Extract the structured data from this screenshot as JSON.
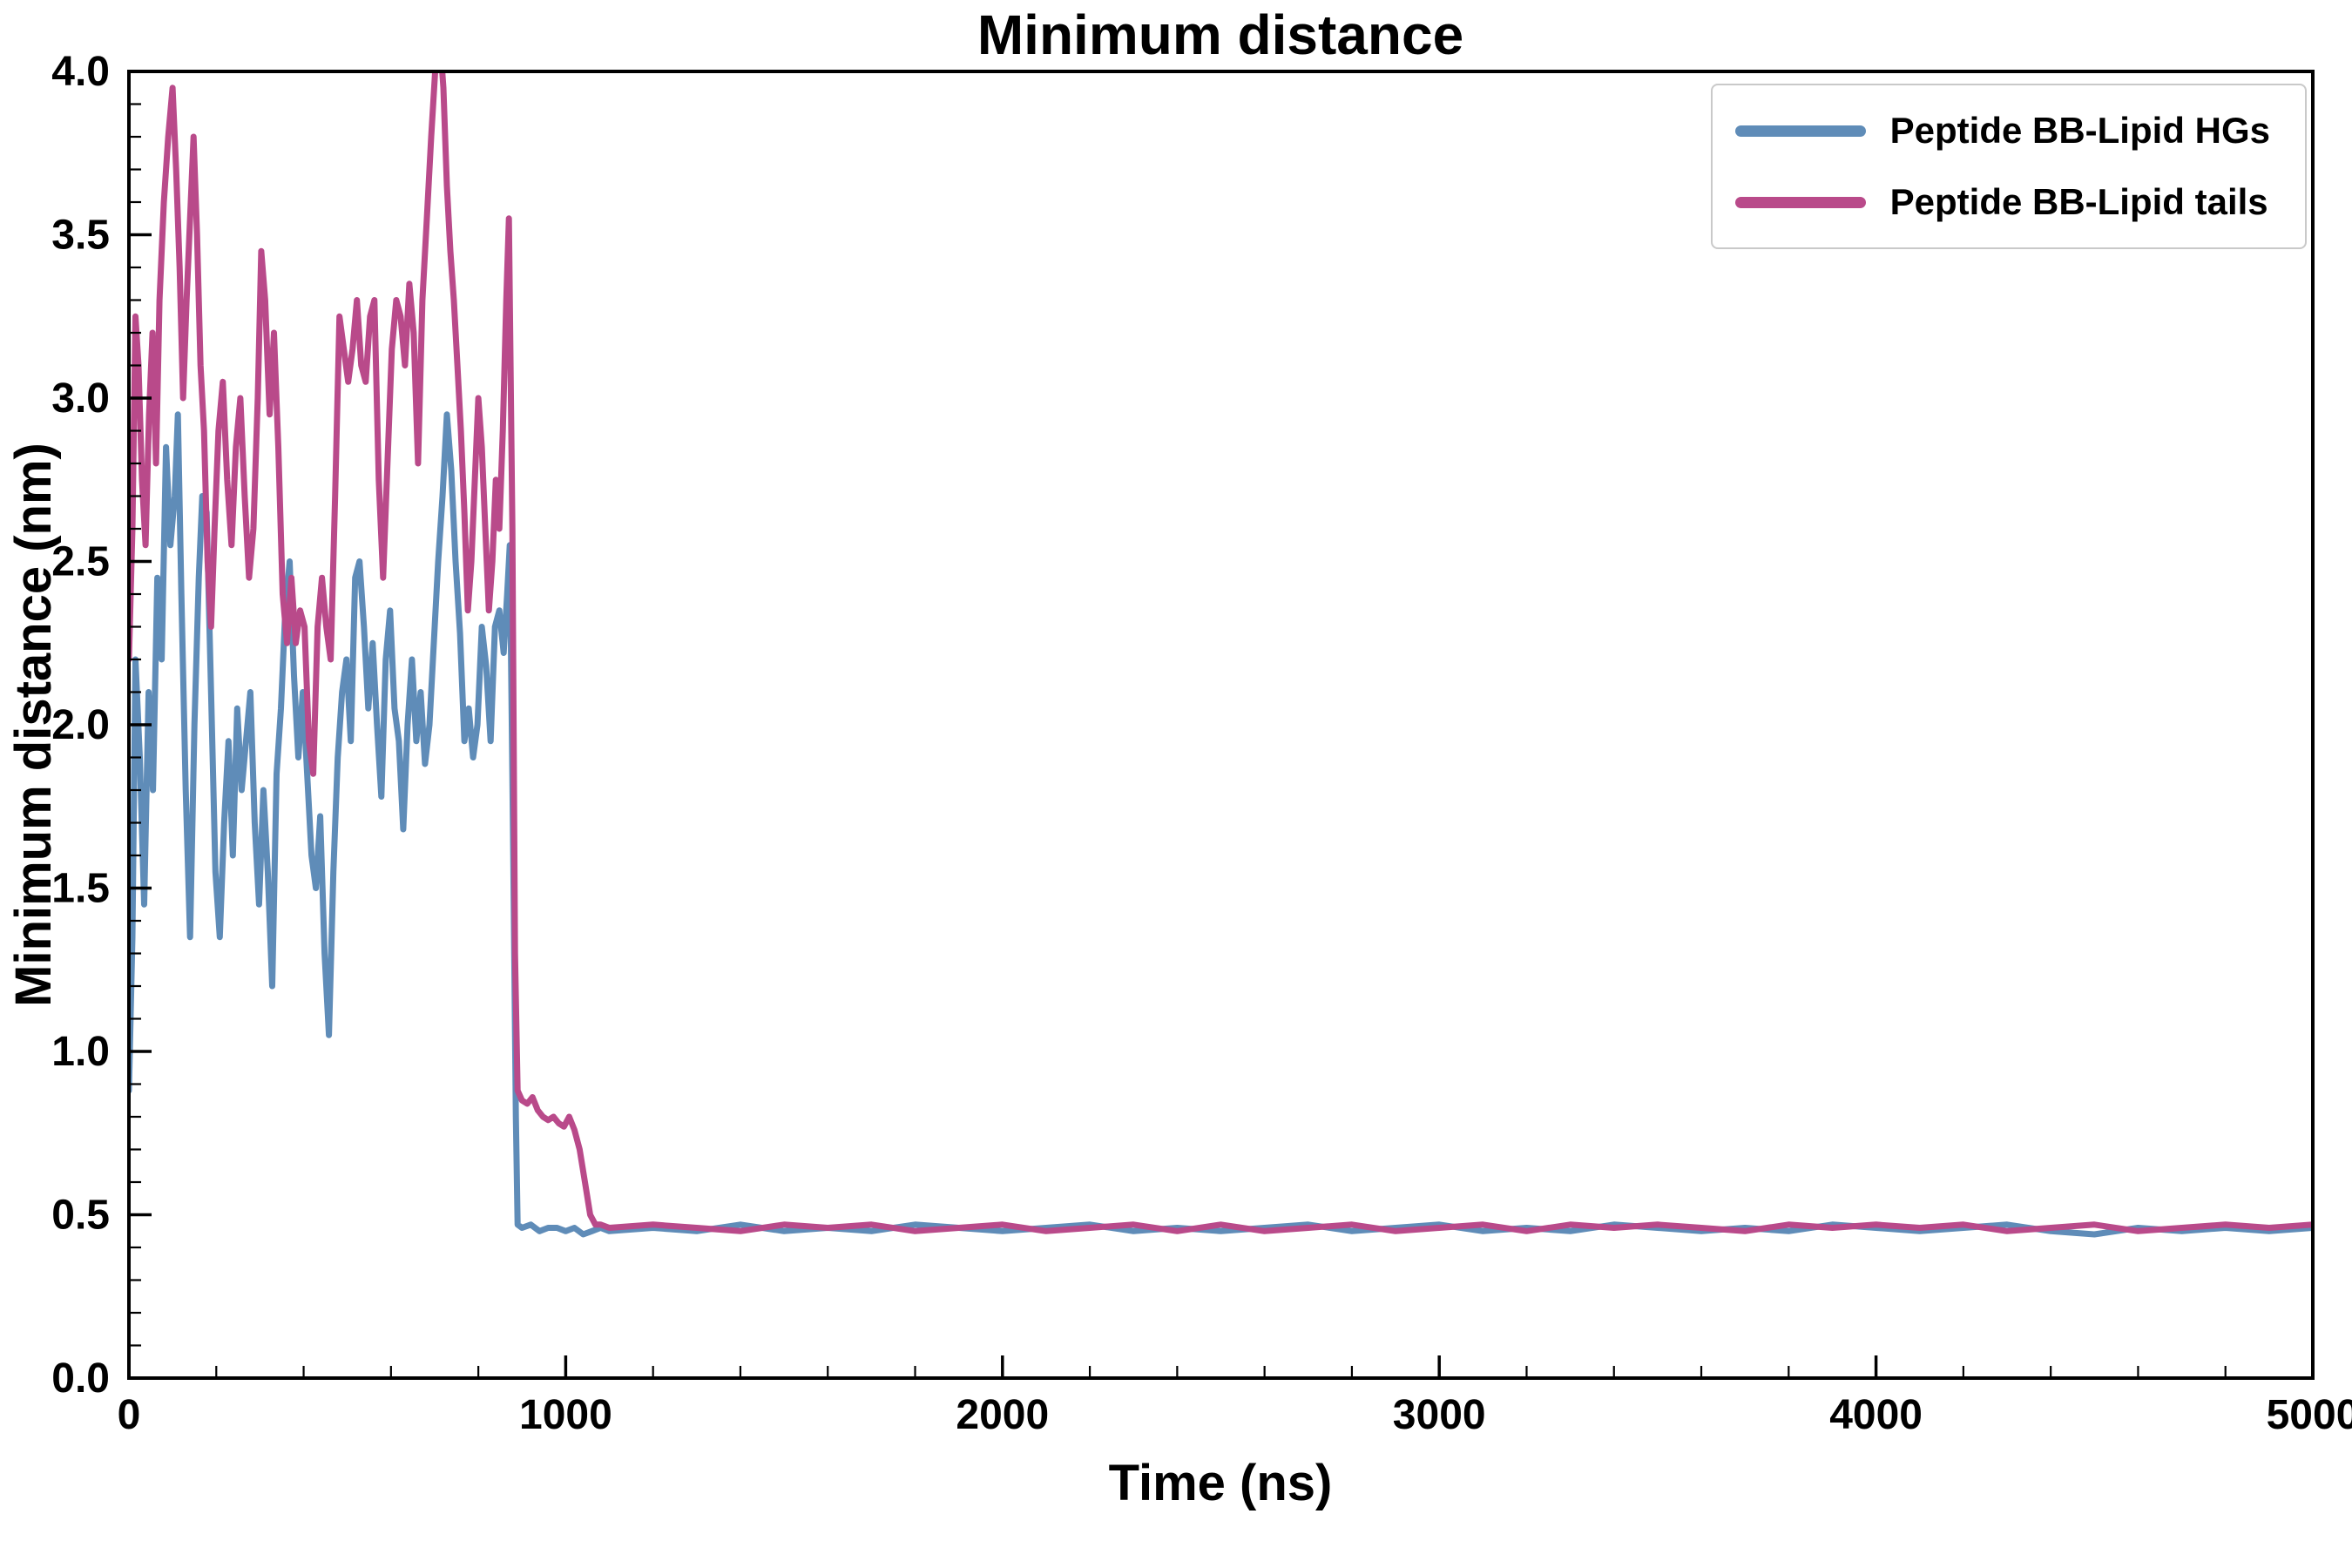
{
  "chart_data": {
    "type": "line",
    "title": "Minimum distance",
    "xlabel": "Time (ns)",
    "ylabel": "Minimum distance (nm)",
    "xlim": [
      0,
      5000
    ],
    "ylim": [
      0.0,
      4.0
    ],
    "xticks": [
      0,
      1000,
      2000,
      3000,
      4000,
      5000
    ],
    "xtick_labels": [
      "0",
      "1000",
      "2000",
      "3000",
      "4000",
      "5000"
    ],
    "yticks": [
      0.0,
      0.5,
      1.0,
      1.5,
      2.0,
      2.5,
      3.0,
      3.5,
      4.0
    ],
    "ytick_labels": [
      "0.0",
      "0.5",
      "1.0",
      "1.5",
      "2.0",
      "2.5",
      "3.0",
      "3.5",
      "4.0"
    ],
    "x_minor_step": 200,
    "y_minor_step": 0.1,
    "grid": false,
    "legend_position": "upper right",
    "series": [
      {
        "name": "Peptide BB-Lipid HGs",
        "color": "#5f8cb8",
        "points": [
          [
            0,
            0.88
          ],
          [
            8,
            1.35
          ],
          [
            15,
            2.2
          ],
          [
            25,
            1.9
          ],
          [
            35,
            1.45
          ],
          [
            45,
            2.1
          ],
          [
            55,
            1.8
          ],
          [
            65,
            2.45
          ],
          [
            75,
            2.2
          ],
          [
            85,
            2.85
          ],
          [
            95,
            2.55
          ],
          [
            105,
            2.7
          ],
          [
            112,
            2.95
          ],
          [
            120,
            2.4
          ],
          [
            130,
            1.8
          ],
          [
            140,
            1.35
          ],
          [
            150,
            2.0
          ],
          [
            160,
            2.45
          ],
          [
            168,
            2.7
          ],
          [
            178,
            2.65
          ],
          [
            188,
            2.1
          ],
          [
            198,
            1.55
          ],
          [
            208,
            1.35
          ],
          [
            218,
            1.7
          ],
          [
            228,
            1.95
          ],
          [
            238,
            1.6
          ],
          [
            248,
            2.05
          ],
          [
            258,
            1.8
          ],
          [
            268,
            1.95
          ],
          [
            278,
            2.1
          ],
          [
            288,
            1.7
          ],
          [
            298,
            1.45
          ],
          [
            308,
            1.8
          ],
          [
            318,
            1.55
          ],
          [
            328,
            1.2
          ],
          [
            338,
            1.85
          ],
          [
            348,
            2.05
          ],
          [
            358,
            2.35
          ],
          [
            368,
            2.5
          ],
          [
            378,
            2.15
          ],
          [
            388,
            1.9
          ],
          [
            398,
            2.1
          ],
          [
            408,
            1.85
          ],
          [
            418,
            1.6
          ],
          [
            428,
            1.5
          ],
          [
            438,
            1.72
          ],
          [
            448,
            1.3
          ],
          [
            458,
            1.05
          ],
          [
            468,
            1.55
          ],
          [
            478,
            1.9
          ],
          [
            488,
            2.1
          ],
          [
            498,
            2.2
          ],
          [
            508,
            1.95
          ],
          [
            518,
            2.45
          ],
          [
            528,
            2.5
          ],
          [
            538,
            2.3
          ],
          [
            548,
            2.05
          ],
          [
            558,
            2.25
          ],
          [
            568,
            2.0
          ],
          [
            578,
            1.78
          ],
          [
            588,
            2.2
          ],
          [
            598,
            2.35
          ],
          [
            608,
            2.05
          ],
          [
            618,
            1.95
          ],
          [
            628,
            1.68
          ],
          [
            638,
            2.0
          ],
          [
            648,
            2.2
          ],
          [
            658,
            1.95
          ],
          [
            668,
            2.1
          ],
          [
            678,
            1.88
          ],
          [
            688,
            2.0
          ],
          [
            698,
            2.25
          ],
          [
            708,
            2.5
          ],
          [
            718,
            2.7
          ],
          [
            728,
            2.95
          ],
          [
            738,
            2.78
          ],
          [
            748,
            2.5
          ],
          [
            758,
            2.28
          ],
          [
            768,
            1.95
          ],
          [
            778,
            2.05
          ],
          [
            788,
            1.9
          ],
          [
            798,
            2.0
          ],
          [
            808,
            2.3
          ],
          [
            818,
            2.18
          ],
          [
            828,
            1.95
          ],
          [
            838,
            2.3
          ],
          [
            848,
            2.35
          ],
          [
            858,
            2.22
          ],
          [
            866,
            2.4
          ],
          [
            872,
            2.55
          ],
          [
            880,
            1.6
          ],
          [
            886,
            0.8
          ],
          [
            890,
            0.47
          ],
          [
            900,
            0.46
          ],
          [
            920,
            0.47
          ],
          [
            940,
            0.45
          ],
          [
            960,
            0.46
          ],
          [
            980,
            0.46
          ],
          [
            1000,
            0.45
          ],
          [
            1020,
            0.46
          ],
          [
            1040,
            0.44
          ],
          [
            1060,
            0.45
          ],
          [
            1080,
            0.46
          ],
          [
            1100,
            0.45
          ],
          [
            1200,
            0.46
          ],
          [
            1300,
            0.45
          ],
          [
            1400,
            0.47
          ],
          [
            1500,
            0.45
          ],
          [
            1600,
            0.46
          ],
          [
            1700,
            0.45
          ],
          [
            1800,
            0.47
          ],
          [
            1900,
            0.46
          ],
          [
            2000,
            0.45
          ],
          [
            2100,
            0.46
          ],
          [
            2200,
            0.47
          ],
          [
            2300,
            0.45
          ],
          [
            2400,
            0.46
          ],
          [
            2500,
            0.45
          ],
          [
            2600,
            0.46
          ],
          [
            2700,
            0.47
          ],
          [
            2800,
            0.45
          ],
          [
            2900,
            0.46
          ],
          [
            3000,
            0.47
          ],
          [
            3100,
            0.45
          ],
          [
            3200,
            0.46
          ],
          [
            3300,
            0.45
          ],
          [
            3400,
            0.47
          ],
          [
            3500,
            0.46
          ],
          [
            3600,
            0.45
          ],
          [
            3700,
            0.46
          ],
          [
            3800,
            0.45
          ],
          [
            3900,
            0.47
          ],
          [
            4000,
            0.46
          ],
          [
            4100,
            0.45
          ],
          [
            4200,
            0.46
          ],
          [
            4300,
            0.47
          ],
          [
            4400,
            0.45
          ],
          [
            4500,
            0.44
          ],
          [
            4600,
            0.46
          ],
          [
            4700,
            0.45
          ],
          [
            4800,
            0.46
          ],
          [
            4900,
            0.45
          ],
          [
            5000,
            0.46
          ]
        ]
      },
      {
        "name": "Peptide BB-Lipid tails",
        "color": "#b94a8a",
        "points": [
          [
            0,
            2.2
          ],
          [
            8,
            2.6
          ],
          [
            15,
            3.25
          ],
          [
            22,
            3.1
          ],
          [
            30,
            2.75
          ],
          [
            38,
            2.55
          ],
          [
            46,
            2.95
          ],
          [
            54,
            3.2
          ],
          [
            62,
            2.8
          ],
          [
            70,
            3.3
          ],
          [
            80,
            3.6
          ],
          [
            90,
            3.8
          ],
          [
            100,
            3.95
          ],
          [
            108,
            3.7
          ],
          [
            116,
            3.4
          ],
          [
            124,
            3.0
          ],
          [
            132,
            3.3
          ],
          [
            140,
            3.55
          ],
          [
            148,
            3.8
          ],
          [
            156,
            3.5
          ],
          [
            164,
            3.1
          ],
          [
            172,
            2.9
          ],
          [
            180,
            2.5
          ],
          [
            188,
            2.3
          ],
          [
            196,
            2.6
          ],
          [
            205,
            2.9
          ],
          [
            215,
            3.05
          ],
          [
            225,
            2.75
          ],
          [
            235,
            2.55
          ],
          [
            245,
            2.85
          ],
          [
            255,
            3.0
          ],
          [
            265,
            2.7
          ],
          [
            275,
            2.45
          ],
          [
            285,
            2.6
          ],
          [
            295,
            3.0
          ],
          [
            303,
            3.45
          ],
          [
            312,
            3.3
          ],
          [
            322,
            2.95
          ],
          [
            332,
            3.2
          ],
          [
            342,
            2.85
          ],
          [
            352,
            2.4
          ],
          [
            362,
            2.25
          ],
          [
            372,
            2.45
          ],
          [
            382,
            2.25
          ],
          [
            392,
            2.35
          ],
          [
            402,
            2.3
          ],
          [
            412,
            1.95
          ],
          [
            422,
            1.85
          ],
          [
            432,
            2.3
          ],
          [
            442,
            2.45
          ],
          [
            452,
            2.3
          ],
          [
            462,
            2.2
          ],
          [
            472,
            2.7
          ],
          [
            482,
            3.25
          ],
          [
            492,
            3.15
          ],
          [
            502,
            3.05
          ],
          [
            512,
            3.15
          ],
          [
            522,
            3.3
          ],
          [
            532,
            3.1
          ],
          [
            542,
            3.05
          ],
          [
            552,
            3.25
          ],
          [
            562,
            3.3
          ],
          [
            572,
            2.75
          ],
          [
            582,
            2.45
          ],
          [
            592,
            2.8
          ],
          [
            602,
            3.15
          ],
          [
            612,
            3.3
          ],
          [
            622,
            3.25
          ],
          [
            632,
            3.1
          ],
          [
            642,
            3.35
          ],
          [
            652,
            3.2
          ],
          [
            662,
            2.8
          ],
          [
            672,
            3.3
          ],
          [
            682,
            3.55
          ],
          [
            692,
            3.8
          ],
          [
            702,
            4.02
          ],
          [
            712,
            4.1
          ],
          [
            720,
            3.95
          ],
          [
            728,
            3.65
          ],
          [
            736,
            3.45
          ],
          [
            744,
            3.3
          ],
          [
            752,
            3.1
          ],
          [
            760,
            2.9
          ],
          [
            768,
            2.65
          ],
          [
            776,
            2.35
          ],
          [
            784,
            2.5
          ],
          [
            792,
            2.75
          ],
          [
            800,
            3.0
          ],
          [
            808,
            2.85
          ],
          [
            816,
            2.6
          ],
          [
            824,
            2.35
          ],
          [
            832,
            2.5
          ],
          [
            840,
            2.75
          ],
          [
            848,
            2.6
          ],
          [
            856,
            2.9
          ],
          [
            864,
            3.3
          ],
          [
            870,
            3.55
          ],
          [
            878,
            2.6
          ],
          [
            884,
            1.3
          ],
          [
            890,
            0.88
          ],
          [
            900,
            0.85
          ],
          [
            912,
            0.84
          ],
          [
            924,
            0.86
          ],
          [
            936,
            0.82
          ],
          [
            948,
            0.8
          ],
          [
            960,
            0.79
          ],
          [
            972,
            0.8
          ],
          [
            984,
            0.78
          ],
          [
            996,
            0.77
          ],
          [
            1008,
            0.8
          ],
          [
            1020,
            0.76
          ],
          [
            1032,
            0.7
          ],
          [
            1044,
            0.6
          ],
          [
            1056,
            0.5
          ],
          [
            1068,
            0.47
          ],
          [
            1080,
            0.47
          ],
          [
            1100,
            0.46
          ],
          [
            1200,
            0.47
          ],
          [
            1300,
            0.46
          ],
          [
            1400,
            0.45
          ],
          [
            1500,
            0.47
          ],
          [
            1600,
            0.46
          ],
          [
            1700,
            0.47
          ],
          [
            1800,
            0.45
          ],
          [
            1900,
            0.46
          ],
          [
            2000,
            0.47
          ],
          [
            2100,
            0.45
          ],
          [
            2200,
            0.46
          ],
          [
            2300,
            0.47
          ],
          [
            2400,
            0.45
          ],
          [
            2500,
            0.47
          ],
          [
            2600,
            0.45
          ],
          [
            2700,
            0.46
          ],
          [
            2800,
            0.47
          ],
          [
            2900,
            0.45
          ],
          [
            3000,
            0.46
          ],
          [
            3100,
            0.47
          ],
          [
            3200,
            0.45
          ],
          [
            3300,
            0.47
          ],
          [
            3400,
            0.46
          ],
          [
            3500,
            0.47
          ],
          [
            3600,
            0.46
          ],
          [
            3700,
            0.45
          ],
          [
            3800,
            0.47
          ],
          [
            3900,
            0.46
          ],
          [
            4000,
            0.47
          ],
          [
            4100,
            0.46
          ],
          [
            4200,
            0.47
          ],
          [
            4300,
            0.45
          ],
          [
            4400,
            0.46
          ],
          [
            4500,
            0.47
          ],
          [
            4600,
            0.45
          ],
          [
            4700,
            0.46
          ],
          [
            4800,
            0.47
          ],
          [
            4900,
            0.46
          ],
          [
            5000,
            0.47
          ]
        ]
      }
    ]
  },
  "colors": {
    "frame": "#000000",
    "background": "#ffffff",
    "legend_border": "#c9c9c9"
  }
}
